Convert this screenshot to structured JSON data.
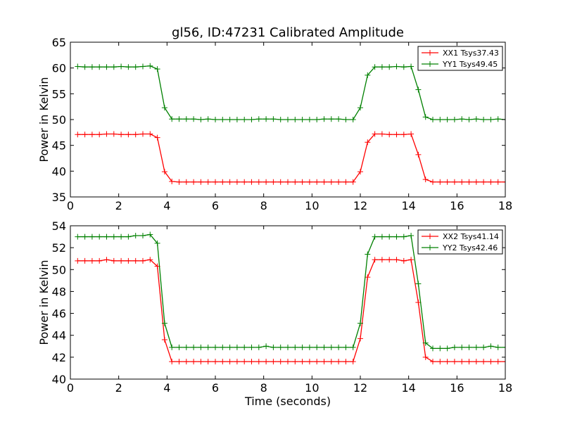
{
  "figure_title": "gl56, ID:47231 Calibrated Amplitude",
  "colors": {
    "XX": "#ff0000",
    "YY": "#008000",
    "axis": "#000000",
    "background": "#ffffff"
  },
  "chart_data": [
    {
      "type": "line",
      "title": "gl56, ID:47231 Calibrated Amplitude",
      "xlabel": "",
      "ylabel": "Power in Kelvin",
      "xlim": [
        0,
        18
      ],
      "ylim": [
        35,
        65
      ],
      "xticks": [
        0,
        2,
        4,
        6,
        8,
        10,
        12,
        14,
        16,
        18
      ],
      "yticks": [
        35,
        40,
        45,
        50,
        55,
        60,
        65
      ],
      "xtick_labels": [
        "0",
        "2",
        "4",
        "6",
        "8",
        "10",
        "12",
        "14",
        "16",
        "18"
      ],
      "ytick_labels": [
        "35",
        "40",
        "45",
        "50",
        "55",
        "60",
        "65"
      ],
      "grid": false,
      "legend": "top-right",
      "x": [
        0.3,
        0.6,
        0.9,
        1.2,
        1.5,
        1.8,
        2.1,
        2.4,
        2.7,
        3.0,
        3.3,
        3.6,
        3.9,
        4.2,
        4.5,
        4.8,
        5.1,
        5.4,
        5.7,
        6.0,
        6.3,
        6.6,
        6.9,
        7.2,
        7.5,
        7.8,
        8.1,
        8.4,
        8.7,
        9.0,
        9.3,
        9.6,
        9.9,
        10.2,
        10.5,
        10.8,
        11.1,
        11.4,
        11.7,
        12.0,
        12.3,
        12.6,
        12.9,
        13.2,
        13.5,
        13.8,
        14.1,
        14.4,
        14.7,
        15.0,
        15.3,
        15.6,
        15.9,
        16.2,
        16.5,
        16.8,
        17.1,
        17.4,
        17.7,
        18.0
      ],
      "series": [
        {
          "name": "XX1 Tsys37.43",
          "color": "#ff0000",
          "values": [
            47.1,
            47.1,
            47.1,
            47.1,
            47.2,
            47.2,
            47.1,
            47.1,
            47.1,
            47.2,
            47.2,
            46.5,
            39.9,
            38.0,
            37.9,
            37.9,
            37.9,
            37.9,
            37.9,
            37.9,
            37.9,
            37.9,
            37.9,
            37.9,
            37.9,
            37.9,
            37.9,
            37.9,
            37.9,
            37.9,
            37.9,
            37.9,
            37.9,
            37.9,
            37.9,
            37.9,
            37.9,
            37.9,
            37.9,
            39.9,
            45.6,
            47.2,
            47.2,
            47.1,
            47.1,
            47.1,
            47.2,
            43.2,
            38.4,
            37.9,
            37.9,
            37.9,
            37.9,
            37.9,
            37.9,
            37.9,
            37.9,
            37.9,
            37.9,
            37.9
          ]
        },
        {
          "name": "YY1 Tsys49.45",
          "color": "#008000",
          "values": [
            60.3,
            60.2,
            60.2,
            60.2,
            60.2,
            60.2,
            60.3,
            60.2,
            60.2,
            60.3,
            60.4,
            59.8,
            52.3,
            50.1,
            50.1,
            50.1,
            50.1,
            50.0,
            50.1,
            50.0,
            50.0,
            50.0,
            50.0,
            50.0,
            50.0,
            50.1,
            50.1,
            50.1,
            50.0,
            50.0,
            50.0,
            50.0,
            50.0,
            50.0,
            50.1,
            50.1,
            50.1,
            50.0,
            50.0,
            52.3,
            58.6,
            60.2,
            60.2,
            60.2,
            60.3,
            60.2,
            60.3,
            55.8,
            50.5,
            50.0,
            50.0,
            50.0,
            50.0,
            50.1,
            50.0,
            50.1,
            50.0,
            50.0,
            50.1,
            50.0
          ]
        }
      ]
    },
    {
      "type": "line",
      "title": "",
      "xlabel": "Time (seconds)",
      "ylabel": "Power in Kelvin",
      "xlim": [
        0,
        18
      ],
      "ylim": [
        40,
        54
      ],
      "xticks": [
        0,
        2,
        4,
        6,
        8,
        10,
        12,
        14,
        16,
        18
      ],
      "yticks": [
        40,
        42,
        44,
        46,
        48,
        50,
        52,
        54
      ],
      "xtick_labels": [
        "0",
        "2",
        "4",
        "6",
        "8",
        "10",
        "12",
        "14",
        "16",
        "18"
      ],
      "ytick_labels": [
        "40",
        "42",
        "44",
        "46",
        "48",
        "50",
        "52",
        "54"
      ],
      "grid": false,
      "legend": "top-right",
      "x": [
        0.3,
        0.6,
        0.9,
        1.2,
        1.5,
        1.8,
        2.1,
        2.4,
        2.7,
        3.0,
        3.3,
        3.6,
        3.9,
        4.2,
        4.5,
        4.8,
        5.1,
        5.4,
        5.7,
        6.0,
        6.3,
        6.6,
        6.9,
        7.2,
        7.5,
        7.8,
        8.1,
        8.4,
        8.7,
        9.0,
        9.3,
        9.6,
        9.9,
        10.2,
        10.5,
        10.8,
        11.1,
        11.4,
        11.7,
        12.0,
        12.3,
        12.6,
        12.9,
        13.2,
        13.5,
        13.8,
        14.1,
        14.4,
        14.7,
        15.0,
        15.3,
        15.6,
        15.9,
        16.2,
        16.5,
        16.8,
        17.1,
        17.4,
        17.7,
        18.0
      ],
      "series": [
        {
          "name": "XX2 Tsys41.14",
          "color": "#ff0000",
          "values": [
            50.8,
            50.8,
            50.8,
            50.8,
            50.9,
            50.8,
            50.8,
            50.8,
            50.8,
            50.8,
            50.9,
            50.3,
            43.6,
            41.6,
            41.6,
            41.6,
            41.6,
            41.6,
            41.6,
            41.6,
            41.6,
            41.6,
            41.6,
            41.6,
            41.6,
            41.6,
            41.6,
            41.6,
            41.6,
            41.6,
            41.6,
            41.6,
            41.6,
            41.6,
            41.6,
            41.6,
            41.6,
            41.6,
            41.6,
            43.7,
            49.3,
            50.9,
            50.9,
            50.9,
            50.9,
            50.8,
            50.9,
            47.0,
            42.0,
            41.6,
            41.6,
            41.6,
            41.6,
            41.6,
            41.6,
            41.6,
            41.6,
            41.6,
            41.6,
            41.6
          ]
        },
        {
          "name": "YY2 Tsys42.46",
          "color": "#008000",
          "values": [
            53.0,
            53.0,
            53.0,
            53.0,
            53.0,
            53.0,
            53.0,
            53.0,
            53.1,
            53.1,
            53.2,
            52.4,
            45.1,
            42.9,
            42.9,
            42.9,
            42.9,
            42.9,
            42.9,
            42.9,
            42.9,
            42.9,
            42.9,
            42.9,
            42.9,
            42.9,
            43.0,
            42.9,
            42.9,
            42.9,
            42.9,
            42.9,
            42.9,
            42.9,
            42.9,
            42.9,
            42.9,
            42.9,
            42.9,
            45.1,
            51.4,
            53.0,
            53.0,
            53.0,
            53.0,
            53.0,
            53.1,
            48.7,
            43.3,
            42.8,
            42.8,
            42.8,
            42.9,
            42.9,
            42.9,
            42.9,
            42.9,
            43.0,
            42.9,
            42.9
          ]
        }
      ]
    }
  ]
}
